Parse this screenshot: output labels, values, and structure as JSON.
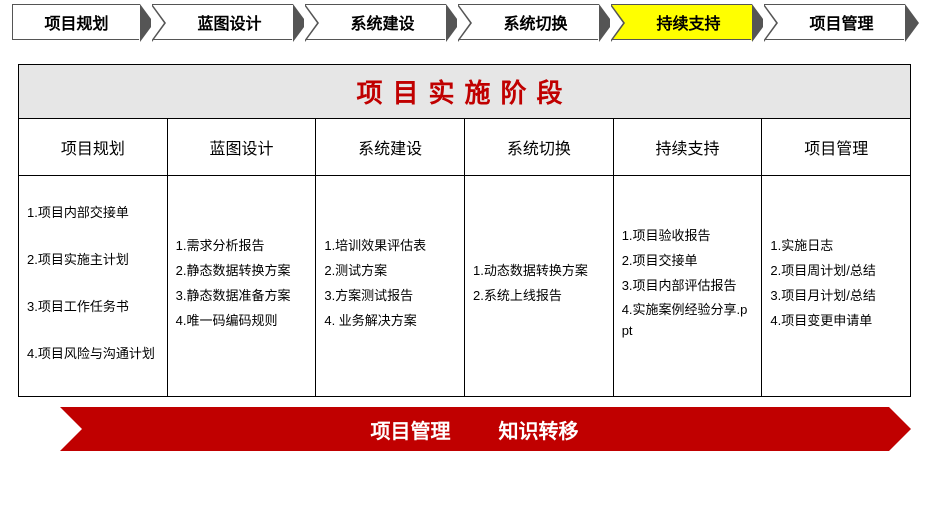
{
  "nav": {
    "items": [
      {
        "label": "项目规划",
        "highlight": false
      },
      {
        "label": "蓝图设计",
        "highlight": false
      },
      {
        "label": "系统建设",
        "highlight": false
      },
      {
        "label": "系统切换",
        "highlight": false
      },
      {
        "label": "持续支持",
        "highlight": true
      },
      {
        "label": "项目管理",
        "highlight": false
      }
    ],
    "highlight_color": "#ffff00",
    "border_color": "#555555",
    "bg_color": "#ffffff",
    "font_size": 16,
    "font_weight": 700
  },
  "phase_table": {
    "title": "项目实施阶段",
    "title_color": "#c00000",
    "title_bg": "#e6e6e6",
    "title_fontsize": 26,
    "border_color": "#000000",
    "header_fontsize": 16,
    "body_fontsize": 13,
    "columns": [
      {
        "header": "项目规划",
        "items": [
          "1.项目内部交接单",
          "2.项目实施主计划",
          "3.项目工作任务书",
          "4.项目风险与沟通计划"
        ],
        "spaced": true
      },
      {
        "header": "蓝图设计",
        "items": [
          "1.需求分析报告",
          "2.静态数据转换方案",
          "3.静态数据准备方案",
          "4.唯一码编码规则"
        ],
        "spaced": false
      },
      {
        "header": "系统建设",
        "items": [
          "1.培训效果评估表",
          "2.测试方案",
          "3.方案测试报告",
          "4. 业务解决方案"
        ],
        "spaced": false
      },
      {
        "header": "系统切换",
        "items": [
          "1.动态数据转换方案",
          "2.系统上线报告"
        ],
        "spaced": false
      },
      {
        "header": "持续支持",
        "items": [
          "1.项目验收报告",
          "2.项目交接单",
          "3.项目内部评估报告",
          "4.实施案例经验分享.ppt"
        ],
        "spaced": false
      },
      {
        "header": "项目管理",
        "items": [
          "1.实施日志",
          "2.项目周计划/总结",
          "3.项目月计划/总结",
          "4.项目变更申请单"
        ],
        "spaced": false
      }
    ]
  },
  "bottom_banner": {
    "bg_color": "#c00000",
    "text_color": "#ffffff",
    "font_size": 20,
    "font_weight": 700,
    "labels": [
      "项目管理",
      "知识转移"
    ]
  }
}
